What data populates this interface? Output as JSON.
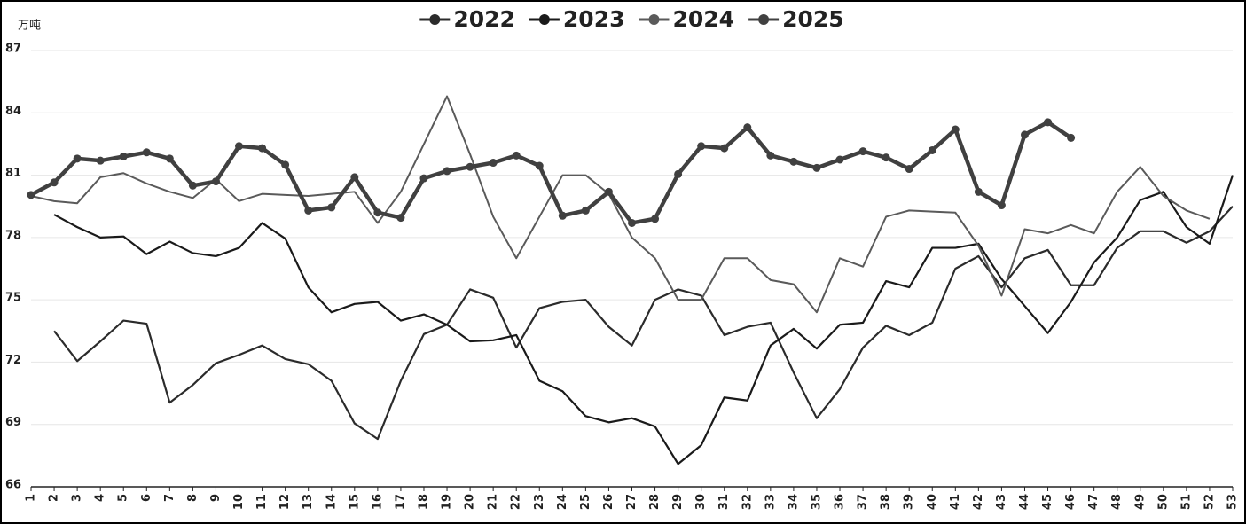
{
  "chart_data": {
    "type": "line",
    "y_label": "万吨",
    "categories": [
      "1",
      "2",
      "3",
      "4",
      "5",
      "6",
      "7",
      "8",
      "9",
      "10",
      "11",
      "12",
      "13",
      "14",
      "15",
      "16",
      "17",
      "18",
      "19",
      "20",
      "21",
      "22",
      "23",
      "24",
      "25",
      "26",
      "27",
      "28",
      "29",
      "30",
      "31",
      "32",
      "33",
      "34",
      "35",
      "36",
      "37",
      "38",
      "39",
      "40",
      "41",
      "42",
      "43",
      "44",
      "45",
      "46",
      "47",
      "48",
      "49",
      "50",
      "51",
      "52",
      "53"
    ],
    "ylim": [
      66,
      87
    ],
    "yticks": [
      66,
      69,
      72,
      75,
      78,
      81,
      84,
      87
    ],
    "grid": true,
    "legend": "top",
    "series": [
      {
        "name": "2022",
        "color": "#2b2b2b",
        "line_width": 2.2,
        "markers": false,
        "values": [
          null,
          73.5,
          72.05,
          73.0,
          74.0,
          73.85,
          70.05,
          70.9,
          71.95,
          72.35,
          72.8,
          72.15,
          71.9,
          71.1,
          69.05,
          68.3,
          71.1,
          73.35,
          73.8,
          75.5,
          75.1,
          72.7,
          74.6,
          74.9,
          75.0,
          73.7,
          72.8,
          75.0,
          75.5,
          75.2,
          73.3,
          73.7,
          73.9,
          71.5,
          69.3,
          70.7,
          72.7,
          73.75,
          73.3,
          73.9,
          76.5,
          77.1,
          75.6,
          77.0,
          77.4,
          75.7,
          75.7,
          77.5,
          78.3,
          78.3,
          77.75,
          78.3,
          79.5
        ]
      },
      {
        "name": "2023",
        "color": "#1a1a1a",
        "line_width": 2.2,
        "markers": false,
        "values": [
          null,
          79.1,
          78.5,
          78.0,
          78.05,
          77.2,
          77.8,
          77.25,
          77.1,
          77.5,
          78.7,
          77.95,
          75.6,
          74.4,
          74.8,
          74.9,
          74.0,
          74.3,
          73.8,
          73.0,
          73.05,
          73.3,
          71.1,
          70.6,
          69.4,
          69.1,
          69.3,
          68.9,
          67.1,
          68.0,
          70.3,
          70.15,
          72.8,
          73.6,
          72.65,
          73.8,
          73.9,
          75.9,
          75.6,
          77.5,
          77.5,
          77.7,
          76.0,
          74.7,
          73.4,
          74.9,
          76.8,
          78.0,
          79.8,
          80.2,
          78.5,
          77.7,
          81.0
        ]
      },
      {
        "name": "2024",
        "color": "#5a5a5a",
        "line_width": 2,
        "markers": false,
        "values": [
          80.0,
          79.75,
          79.65,
          80.9,
          81.1,
          80.6,
          80.2,
          79.9,
          80.8,
          79.75,
          80.1,
          80.05,
          80.0,
          80.1,
          80.2,
          78.7,
          80.2,
          82.5,
          84.8,
          82.0,
          79.0,
          77.0,
          79.0,
          81.0,
          81.0,
          80.1,
          78.0,
          77.0,
          75.0,
          75.0,
          77.0,
          77.0,
          75.95,
          75.75,
          74.4,
          77.0,
          76.6,
          79.0,
          79.3,
          79.25,
          79.2,
          77.6,
          75.2,
          78.4,
          78.2,
          78.6,
          78.2,
          80.2,
          81.4,
          80.0,
          79.3,
          78.9,
          null
        ]
      },
      {
        "name": "2025",
        "color": "#404040",
        "line_width": 4.5,
        "markers": true,
        "values": [
          80.05,
          80.65,
          81.8,
          81.7,
          81.9,
          82.1,
          81.8,
          80.5,
          80.7,
          82.4,
          82.3,
          81.5,
          79.3,
          79.45,
          80.9,
          79.2,
          78.95,
          80.85,
          81.2,
          81.4,
          81.6,
          81.95,
          81.45,
          79.05,
          79.3,
          80.2,
          78.7,
          78.9,
          81.05,
          82.4,
          82.3,
          83.3,
          81.95,
          81.65,
          81.35,
          81.75,
          82.15,
          81.85,
          81.3,
          82.2,
          83.2,
          80.2,
          79.55,
          82.95,
          83.55,
          82.8,
          null,
          null,
          null,
          null,
          null,
          null,
          null
        ]
      }
    ]
  }
}
